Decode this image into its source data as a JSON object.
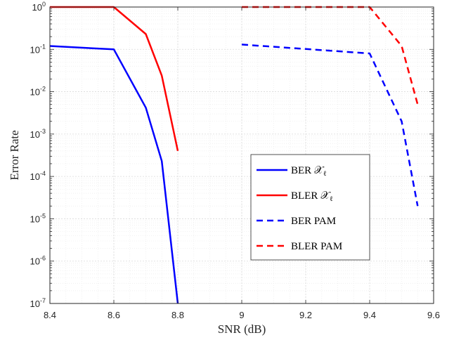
{
  "chart_data": {
    "type": "line",
    "title": "",
    "xlabel": "SNR (dB)",
    "ylabel": "Error Rate",
    "xlim": [
      8.4,
      9.6
    ],
    "ylim": [
      1e-07,
      1
    ],
    "yscale": "log",
    "grid": "on (major and minor)",
    "legend_position": "center-right",
    "x_ticks": [
      "8.4",
      "8.6",
      "8.8",
      "9",
      "9.2",
      "9.4",
      "9.6"
    ],
    "y_ticks": [
      {
        "base": "10",
        "exp": "0"
      },
      {
        "base": "10",
        "exp": "-1"
      },
      {
        "base": "10",
        "exp": "-2"
      },
      {
        "base": "10",
        "exp": "-3"
      },
      {
        "base": "10",
        "exp": "-4"
      },
      {
        "base": "10",
        "exp": "-5"
      },
      {
        "base": "10",
        "exp": "-6"
      },
      {
        "base": "10",
        "exp": "-7"
      }
    ],
    "series": [
      {
        "name": "BER 𝒳ℓ",
        "legend_main": "BER 𝒳",
        "legend_sub": "ℓ",
        "color": "#0000ff",
        "dash": "solid",
        "x": [
          8.4,
          8.6,
          8.7,
          8.75,
          8.8
        ],
        "y": [
          0.12,
          0.1,
          0.0042,
          0.00023,
          1e-07
        ]
      },
      {
        "name": "BLER 𝒳ℓ",
        "legend_main": "BLER 𝒳",
        "legend_sub": "ℓ",
        "color": "#ff0000",
        "dash": "solid",
        "x": [
          8.4,
          8.6,
          8.7,
          8.75,
          8.8
        ],
        "y": [
          1,
          1,
          0.23,
          0.024,
          0.0004
        ]
      },
      {
        "name": "BER PAM",
        "legend_main": "BER PAM",
        "legend_sub": "",
        "color": "#0000ff",
        "dash": "dashed",
        "x": [
          9.0,
          9.4,
          9.5,
          9.55
        ],
        "y": [
          0.13,
          0.08,
          0.002,
          2e-05
        ]
      },
      {
        "name": "BLER PAM",
        "legend_main": "BLER PAM",
        "legend_sub": "",
        "color": "#ff0000",
        "dash": "dashed",
        "x": [
          9.0,
          9.4,
          9.5,
          9.55
        ],
        "y": [
          1,
          1,
          0.12,
          0.005
        ]
      }
    ]
  }
}
